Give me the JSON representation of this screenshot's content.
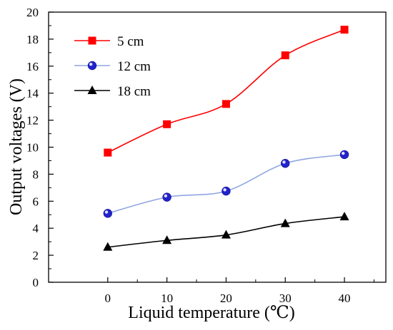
{
  "chart_data": {
    "type": "line",
    "title": "",
    "xlabel": "Liquid temperature (℃)",
    "ylabel": "Output voltages (V)",
    "x": [
      0,
      10,
      20,
      30,
      40
    ],
    "xlim": [
      -10,
      47
    ],
    "ylim": [
      0,
      20
    ],
    "xticks": [
      "0",
      "10",
      "20",
      "30",
      "40"
    ],
    "yticks": [
      "0",
      "2",
      "4",
      "6",
      "8",
      "10",
      "12",
      "14",
      "16",
      "18",
      "20"
    ],
    "grid": false,
    "legend_position": "top-left",
    "series": [
      {
        "name": "5 cm",
        "values": [
          9.6,
          11.7,
          13.2,
          16.8,
          18.7
        ],
        "color": "#ff0000",
        "marker": "square"
      },
      {
        "name": "12 cm",
        "values": [
          5.1,
          6.3,
          6.75,
          8.8,
          9.45
        ],
        "color": "#8ea6e0",
        "marker_color": "#2222cc",
        "marker": "circle"
      },
      {
        "name": "18 cm",
        "values": [
          2.6,
          3.1,
          3.5,
          4.35,
          4.85
        ],
        "color": "#000000",
        "marker": "triangle"
      }
    ]
  }
}
